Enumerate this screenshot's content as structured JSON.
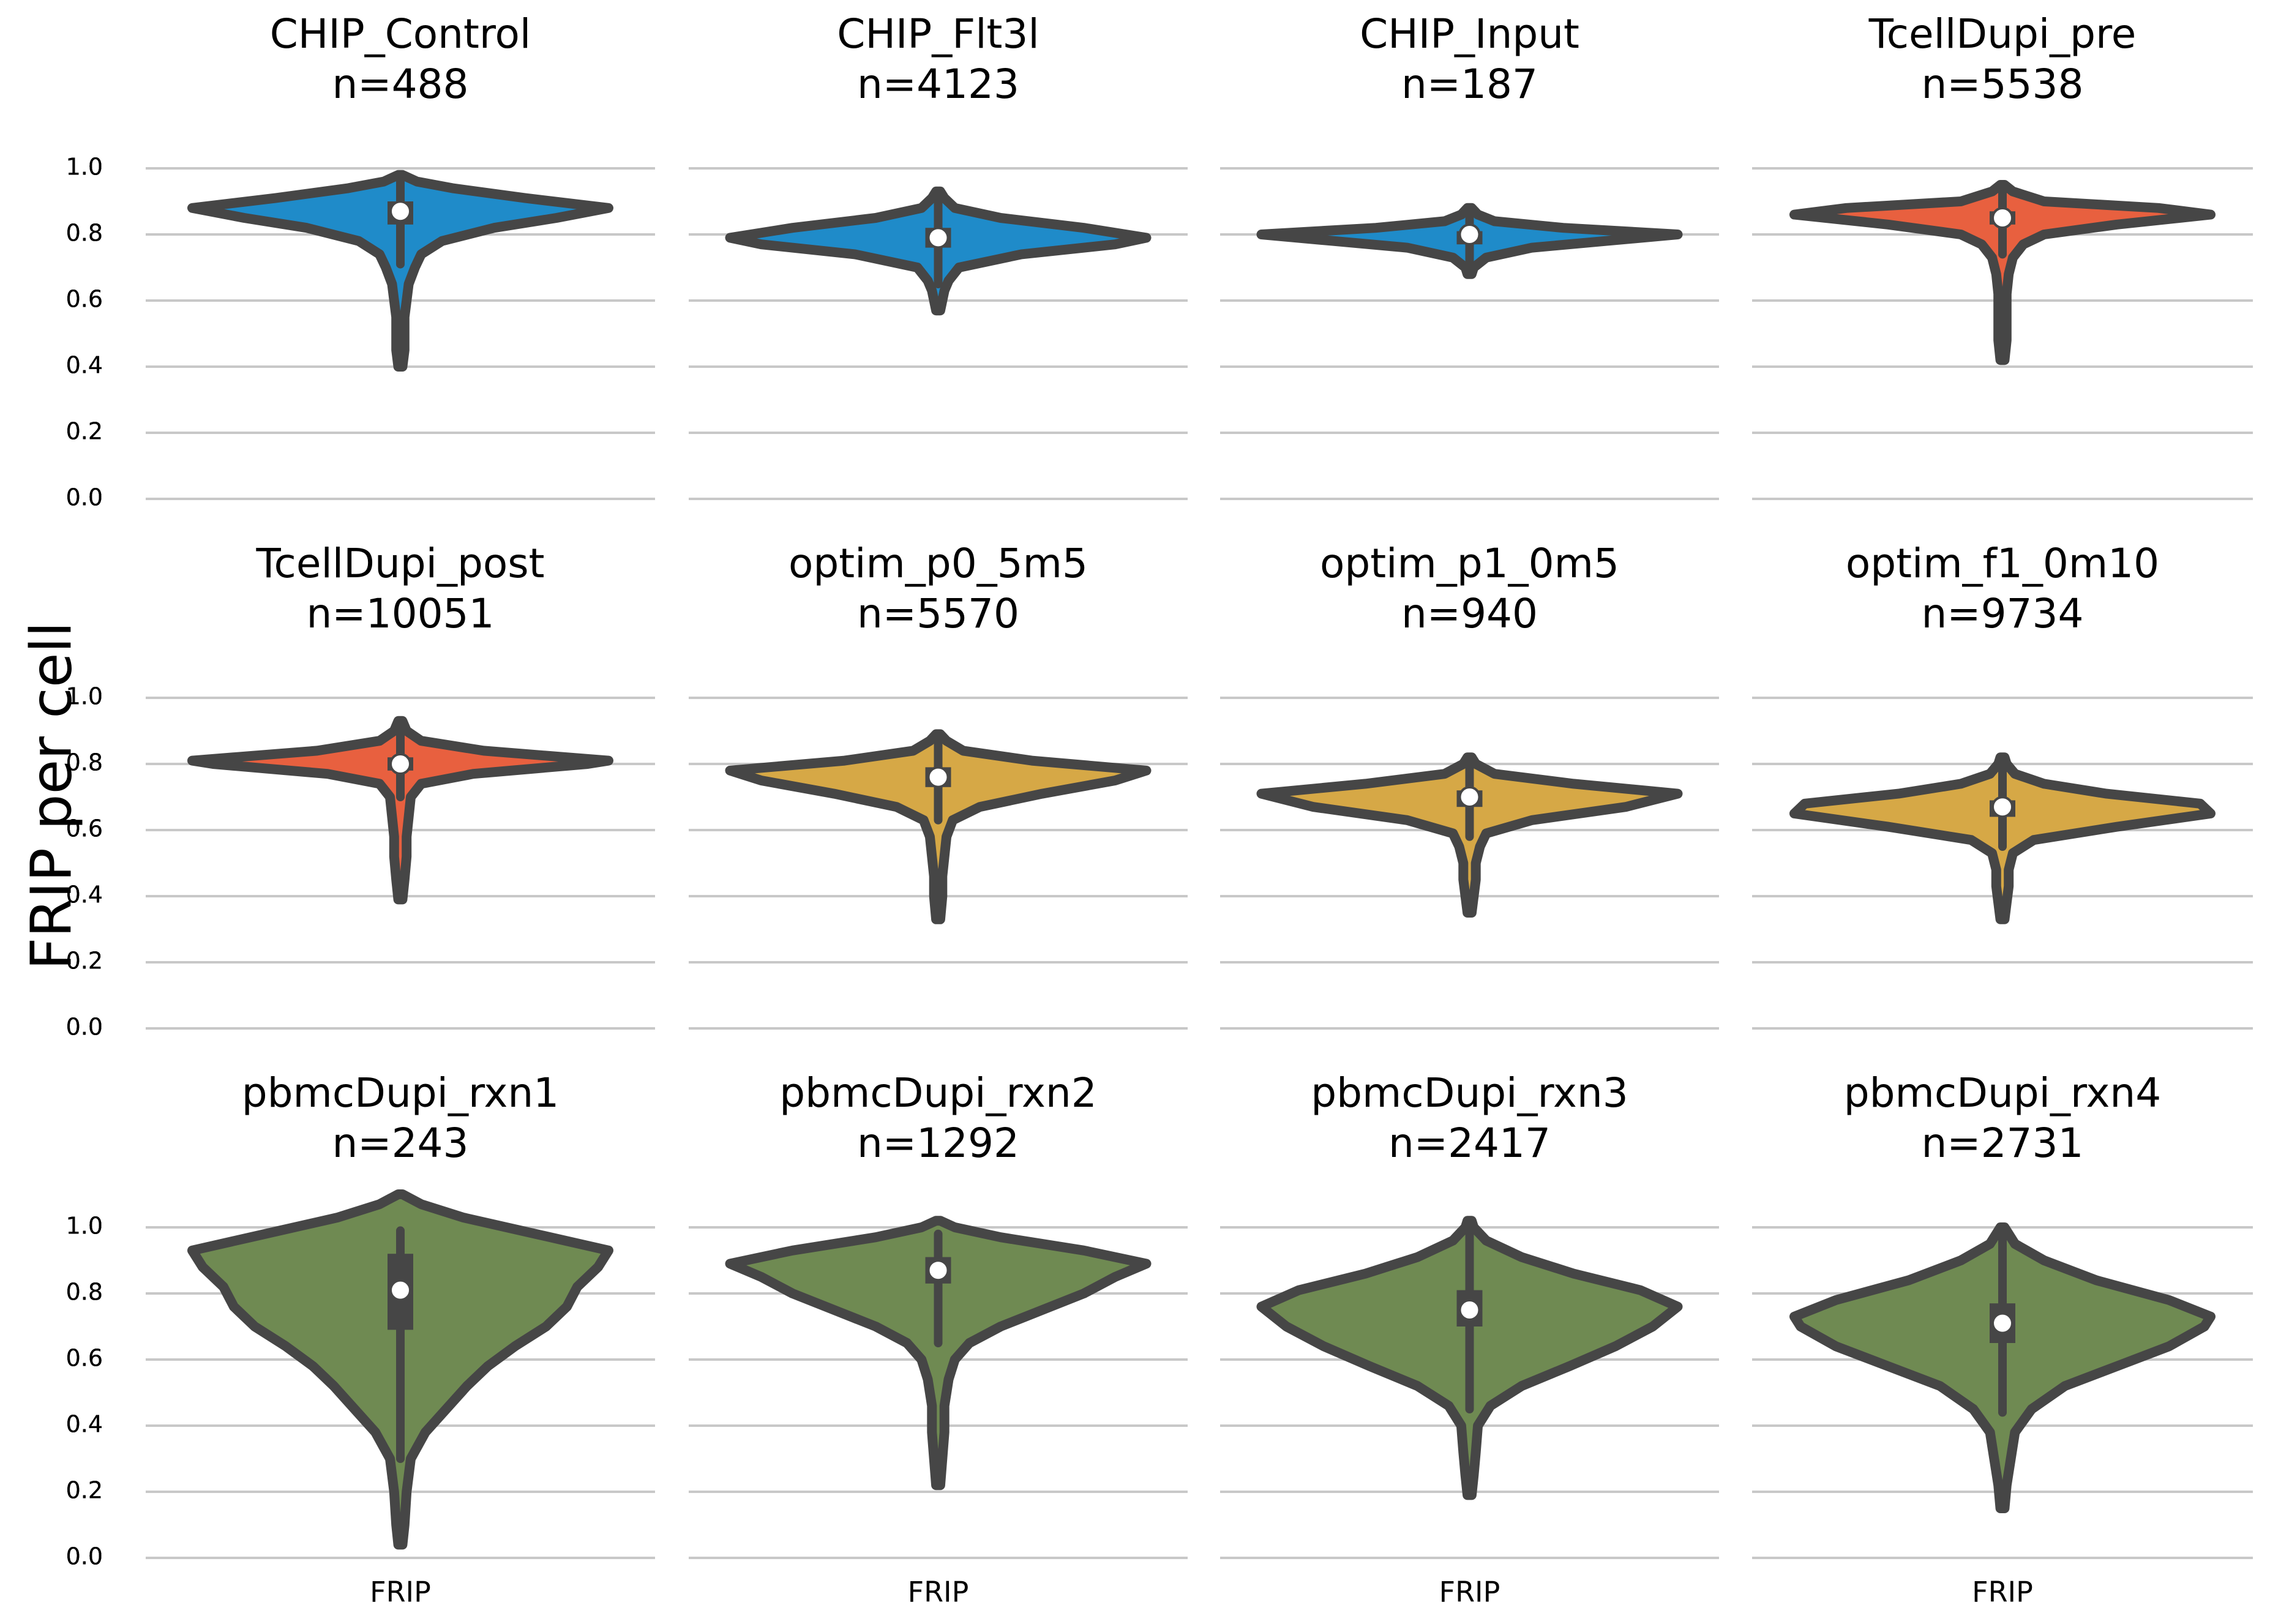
{
  "chart_data": {
    "type": "violin",
    "ylabel": "FRIP per cell",
    "xtick_label": "FRIP",
    "ylim": [
      0.0,
      1.0
    ],
    "yticks": [
      "0.0",
      "0.2",
      "0.4",
      "0.6",
      "0.8",
      "1.0"
    ],
    "grid": "horizontal",
    "layout": "3 rows x 4 columns",
    "colors": {
      "CHIP": "#1f8bc9",
      "Tcell": "#e8603f",
      "optim": "#d6a846",
      "pbmc": "#6f8a52",
      "outline": "#464646",
      "grid": "#c8c8c8"
    },
    "panels": [
      {
        "title": "CHIP_Control",
        "n": "n=488",
        "group": "CHIP",
        "median": 0.87,
        "q1": 0.83,
        "q3": 0.9,
        "whisker": [
          0.71,
          0.96
        ],
        "range": [
          0.4,
          0.98
        ],
        "profile": [
          [
            0.4,
            0.01
          ],
          [
            0.45,
            0.02
          ],
          [
            0.5,
            0.02
          ],
          [
            0.55,
            0.02
          ],
          [
            0.6,
            0.03
          ],
          [
            0.65,
            0.04
          ],
          [
            0.7,
            0.07
          ],
          [
            0.74,
            0.1
          ],
          [
            0.78,
            0.2
          ],
          [
            0.82,
            0.45
          ],
          [
            0.85,
            0.75
          ],
          [
            0.88,
            1.0
          ],
          [
            0.91,
            0.6
          ],
          [
            0.94,
            0.25
          ],
          [
            0.96,
            0.08
          ],
          [
            0.98,
            0.01
          ]
        ]
      },
      {
        "title": "CHIP_Flt3l",
        "n": "n=4123",
        "group": "CHIP",
        "median": 0.79,
        "q1": 0.76,
        "q3": 0.82,
        "whisker": [
          0.65,
          0.9
        ],
        "range": [
          0.57,
          0.93
        ],
        "profile": [
          [
            0.57,
            0.01
          ],
          [
            0.6,
            0.02
          ],
          [
            0.63,
            0.03
          ],
          [
            0.66,
            0.05
          ],
          [
            0.7,
            0.1
          ],
          [
            0.74,
            0.4
          ],
          [
            0.77,
            0.85
          ],
          [
            0.79,
            1.0
          ],
          [
            0.82,
            0.7
          ],
          [
            0.85,
            0.3
          ],
          [
            0.88,
            0.08
          ],
          [
            0.91,
            0.03
          ],
          [
            0.93,
            0.01
          ]
        ]
      },
      {
        "title": "CHIP_Input",
        "n": "n=187",
        "group": "CHIP",
        "median": 0.8,
        "q1": 0.77,
        "q3": 0.81,
        "whisker": [
          0.7,
          0.87
        ],
        "range": [
          0.68,
          0.88
        ],
        "profile": [
          [
            0.68,
            0.01
          ],
          [
            0.7,
            0.02
          ],
          [
            0.73,
            0.08
          ],
          [
            0.76,
            0.3
          ],
          [
            0.78,
            0.65
          ],
          [
            0.8,
            1.0
          ],
          [
            0.82,
            0.45
          ],
          [
            0.84,
            0.12
          ],
          [
            0.86,
            0.04
          ],
          [
            0.88,
            0.01
          ]
        ]
      },
      {
        "title": "TcellDupi_pre",
        "n": "n=5538",
        "group": "Tcell",
        "median": 0.85,
        "q1": 0.83,
        "q3": 0.87,
        "whisker": [
          0.74,
          0.93
        ],
        "range": [
          0.42,
          0.95
        ],
        "profile": [
          [
            0.42,
            0.01
          ],
          [
            0.48,
            0.02
          ],
          [
            0.55,
            0.02
          ],
          [
            0.62,
            0.02
          ],
          [
            0.68,
            0.03
          ],
          [
            0.73,
            0.05
          ],
          [
            0.77,
            0.1
          ],
          [
            0.8,
            0.2
          ],
          [
            0.83,
            0.55
          ],
          [
            0.86,
            1.0
          ],
          [
            0.88,
            0.75
          ],
          [
            0.9,
            0.2
          ],
          [
            0.93,
            0.05
          ],
          [
            0.95,
            0.01
          ]
        ]
      },
      {
        "title": "TcellDupi_post",
        "n": "n=10051",
        "group": "Tcell",
        "median": 0.8,
        "q1": 0.78,
        "q3": 0.82,
        "whisker": [
          0.7,
          0.91
        ],
        "range": [
          0.39,
          0.93
        ],
        "profile": [
          [
            0.39,
            0.01
          ],
          [
            0.45,
            0.02
          ],
          [
            0.52,
            0.03
          ],
          [
            0.58,
            0.03
          ],
          [
            0.64,
            0.04
          ],
          [
            0.7,
            0.05
          ],
          [
            0.74,
            0.1
          ],
          [
            0.77,
            0.35
          ],
          [
            0.8,
            0.9
          ],
          [
            0.81,
            1.0
          ],
          [
            0.84,
            0.4
          ],
          [
            0.87,
            0.1
          ],
          [
            0.9,
            0.03
          ],
          [
            0.93,
            0.01
          ]
        ]
      },
      {
        "title": "optim_p0_5m5",
        "n": "n=5570",
        "group": "optim",
        "median": 0.76,
        "q1": 0.73,
        "q3": 0.79,
        "whisker": [
          0.63,
          0.87
        ],
        "range": [
          0.33,
          0.89
        ],
        "profile": [
          [
            0.33,
            0.01
          ],
          [
            0.4,
            0.02
          ],
          [
            0.46,
            0.02
          ],
          [
            0.52,
            0.03
          ],
          [
            0.58,
            0.04
          ],
          [
            0.63,
            0.07
          ],
          [
            0.67,
            0.2
          ],
          [
            0.71,
            0.5
          ],
          [
            0.75,
            0.85
          ],
          [
            0.78,
            1.0
          ],
          [
            0.81,
            0.45
          ],
          [
            0.84,
            0.12
          ],
          [
            0.87,
            0.04
          ],
          [
            0.89,
            0.01
          ]
        ]
      },
      {
        "title": "optim_p1_0m5",
        "n": "n=940",
        "group": "optim",
        "median": 0.7,
        "q1": 0.67,
        "q3": 0.72,
        "whisker": [
          0.58,
          0.79
        ],
        "range": [
          0.35,
          0.82
        ],
        "profile": [
          [
            0.35,
            0.01
          ],
          [
            0.4,
            0.02
          ],
          [
            0.45,
            0.03
          ],
          [
            0.5,
            0.03
          ],
          [
            0.55,
            0.05
          ],
          [
            0.59,
            0.08
          ],
          [
            0.63,
            0.3
          ],
          [
            0.67,
            0.75
          ],
          [
            0.71,
            1.0
          ],
          [
            0.74,
            0.5
          ],
          [
            0.77,
            0.12
          ],
          [
            0.8,
            0.03
          ],
          [
            0.82,
            0.01
          ]
        ]
      },
      {
        "title": "optim_f1_0m10",
        "n": "n=9734",
        "group": "optim",
        "median": 0.67,
        "q1": 0.64,
        "q3": 0.69,
        "whisker": [
          0.55,
          0.78
        ],
        "range": [
          0.33,
          0.82
        ],
        "profile": [
          [
            0.33,
            0.01
          ],
          [
            0.38,
            0.02
          ],
          [
            0.43,
            0.03
          ],
          [
            0.48,
            0.03
          ],
          [
            0.53,
            0.05
          ],
          [
            0.57,
            0.15
          ],
          [
            0.61,
            0.55
          ],
          [
            0.65,
            1.0
          ],
          [
            0.68,
            0.95
          ],
          [
            0.71,
            0.5
          ],
          [
            0.74,
            0.2
          ],
          [
            0.77,
            0.06
          ],
          [
            0.8,
            0.02
          ],
          [
            0.82,
            0.01
          ]
        ]
      },
      {
        "title": "pbmcDupi_rxn1",
        "n": "n=243",
        "group": "pbmc",
        "median": 0.81,
        "q1": 0.69,
        "q3": 0.92,
        "whisker": [
          0.3,
          0.99
        ],
        "range": [
          0.04,
          1.1
        ],
        "profile": [
          [
            0.04,
            0.01
          ],
          [
            0.1,
            0.02
          ],
          [
            0.2,
            0.03
          ],
          [
            0.3,
            0.05
          ],
          [
            0.38,
            0.12
          ],
          [
            0.45,
            0.22
          ],
          [
            0.52,
            0.32
          ],
          [
            0.58,
            0.42
          ],
          [
            0.64,
            0.55
          ],
          [
            0.7,
            0.7
          ],
          [
            0.76,
            0.8
          ],
          [
            0.82,
            0.85
          ],
          [
            0.88,
            0.95
          ],
          [
            0.93,
            1.0
          ],
          [
            0.98,
            0.65
          ],
          [
            1.03,
            0.3
          ],
          [
            1.07,
            0.1
          ],
          [
            1.1,
            0.01
          ]
        ]
      },
      {
        "title": "pbmcDupi_rxn2",
        "n": "n=1292",
        "group": "pbmc",
        "median": 0.87,
        "q1": 0.83,
        "q3": 0.91,
        "whisker": [
          0.65,
          0.98
        ],
        "range": [
          0.22,
          1.02
        ],
        "profile": [
          [
            0.22,
            0.01
          ],
          [
            0.3,
            0.02
          ],
          [
            0.38,
            0.03
          ],
          [
            0.46,
            0.03
          ],
          [
            0.54,
            0.05
          ],
          [
            0.6,
            0.08
          ],
          [
            0.65,
            0.15
          ],
          [
            0.7,
            0.3
          ],
          [
            0.75,
            0.5
          ],
          [
            0.8,
            0.7
          ],
          [
            0.85,
            0.85
          ],
          [
            0.89,
            1.0
          ],
          [
            0.93,
            0.7
          ],
          [
            0.97,
            0.3
          ],
          [
            1.0,
            0.08
          ],
          [
            1.02,
            0.01
          ]
        ]
      },
      {
        "title": "pbmcDupi_rxn3",
        "n": "n=2417",
        "group": "pbmc",
        "median": 0.75,
        "q1": 0.7,
        "q3": 0.81,
        "whisker": [
          0.45,
          0.98
        ],
        "range": [
          0.19,
          1.02
        ],
        "profile": [
          [
            0.19,
            0.01
          ],
          [
            0.25,
            0.02
          ],
          [
            0.32,
            0.03
          ],
          [
            0.4,
            0.04
          ],
          [
            0.46,
            0.1
          ],
          [
            0.52,
            0.25
          ],
          [
            0.58,
            0.48
          ],
          [
            0.64,
            0.7
          ],
          [
            0.7,
            0.88
          ],
          [
            0.76,
            1.0
          ],
          [
            0.81,
            0.82
          ],
          [
            0.86,
            0.5
          ],
          [
            0.91,
            0.25
          ],
          [
            0.96,
            0.08
          ],
          [
            1.0,
            0.02
          ],
          [
            1.02,
            0.01
          ]
        ]
      },
      {
        "title": "pbmcDupi_rxn4",
        "n": "n=2731",
        "group": "pbmc",
        "median": 0.71,
        "q1": 0.65,
        "q3": 0.77,
        "whisker": [
          0.44,
          0.98
        ],
        "range": [
          0.15,
          1.0
        ],
        "profile": [
          [
            0.15,
            0.01
          ],
          [
            0.22,
            0.02
          ],
          [
            0.3,
            0.04
          ],
          [
            0.38,
            0.06
          ],
          [
            0.45,
            0.14
          ],
          [
            0.52,
            0.3
          ],
          [
            0.58,
            0.55
          ],
          [
            0.64,
            0.8
          ],
          [
            0.7,
            0.97
          ],
          [
            0.73,
            1.0
          ],
          [
            0.78,
            0.8
          ],
          [
            0.84,
            0.45
          ],
          [
            0.9,
            0.2
          ],
          [
            0.95,
            0.06
          ],
          [
            1.0,
            0.01
          ]
        ]
      }
    ]
  }
}
